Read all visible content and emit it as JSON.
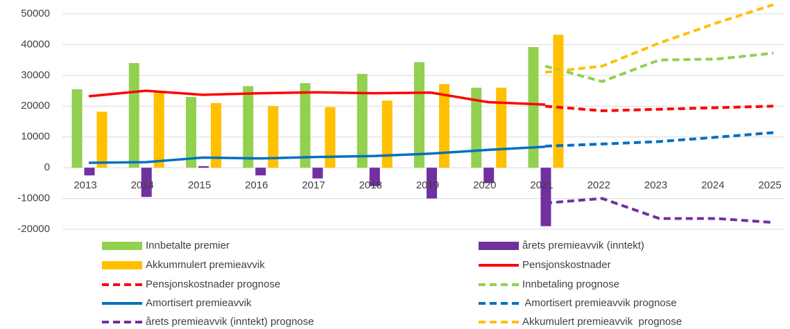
{
  "chart_data": {
    "type": "bar",
    "categories": [
      "2013",
      "2014",
      "2015",
      "2016",
      "2017",
      "2018",
      "2019",
      "2020",
      "2021",
      "2022",
      "2023",
      "2024",
      "2025"
    ],
    "ylim": [
      -20000,
      54000
    ],
    "yticks": [
      -20000,
      -10000,
      0,
      10000,
      20000,
      30000,
      40000,
      50000
    ],
    "grid": true,
    "series": [
      {
        "name": "Innbetalte premier",
        "color": "#92d050",
        "kind": "bar",
        "values": [
          25500,
          34000,
          23000,
          26500,
          27500,
          30500,
          34300,
          26000,
          39200,
          null,
          null,
          null,
          null
        ]
      },
      {
        "name": "årets premieavvik (inntekt)",
        "color": "#7030a0",
        "kind": "bar",
        "values": [
          -2500,
          -9500,
          500,
          -2500,
          -3500,
          -6000,
          -10000,
          -5000,
          -19000,
          null,
          null,
          null,
          null
        ]
      },
      {
        "name": "Akkummulert premieavvik",
        "color": "#ffc000",
        "kind": "bar",
        "values": [
          18200,
          24500,
          21000,
          20000,
          19700,
          21800,
          27200,
          26000,
          43200,
          null,
          null,
          null,
          null
        ]
      },
      {
        "name": "Pensjonskostnader",
        "color": "#ff0000",
        "kind": "line",
        "dashed": false,
        "values": [
          23200,
          25000,
          23700,
          24200,
          24500,
          24200,
          24400,
          21300,
          20500,
          null,
          null,
          null,
          null
        ]
      },
      {
        "name": "Pensjonskostnader prognose",
        "color": "#ff0000",
        "kind": "line",
        "dashed": true,
        "values": [
          null,
          null,
          null,
          null,
          null,
          null,
          null,
          null,
          20000,
          18500,
          19000,
          19500,
          20000
        ]
      },
      {
        "name": "Innbetaling prognose",
        "color": "#92d050",
        "kind": "line",
        "dashed": true,
        "values": [
          null,
          null,
          null,
          null,
          null,
          null,
          null,
          null,
          33000,
          28000,
          35000,
          35300,
          37200
        ]
      },
      {
        "name": "Amortisert premieavvik",
        "color": "#0070c0",
        "kind": "line",
        "dashed": false,
        "values": [
          1600,
          1800,
          3300,
          3000,
          3500,
          3800,
          4600,
          5800,
          6800,
          null,
          null,
          null,
          null
        ]
      },
      {
        "name": " Amortisert premieavvik prognose",
        "color": "#0070c0",
        "kind": "line",
        "dashed": true,
        "values": [
          null,
          null,
          null,
          null,
          null,
          null,
          null,
          null,
          7000,
          7700,
          8500,
          9900,
          11400
        ]
      },
      {
        "name": "årets premieavvik (inntekt) prognose",
        "color": "#7030a0",
        "kind": "line",
        "dashed": true,
        "values": [
          null,
          null,
          null,
          null,
          null,
          null,
          null,
          null,
          -11500,
          -10000,
          -16500,
          -16500,
          -17800
        ]
      },
      {
        "name": "Akkumulert premieavvik  prognose",
        "color": "#ffc000",
        "kind": "line",
        "dashed": true,
        "values": [
          null,
          null,
          null,
          null,
          null,
          null,
          null,
          null,
          31000,
          33000,
          40500,
          47000,
          53000
        ]
      }
    ]
  }
}
